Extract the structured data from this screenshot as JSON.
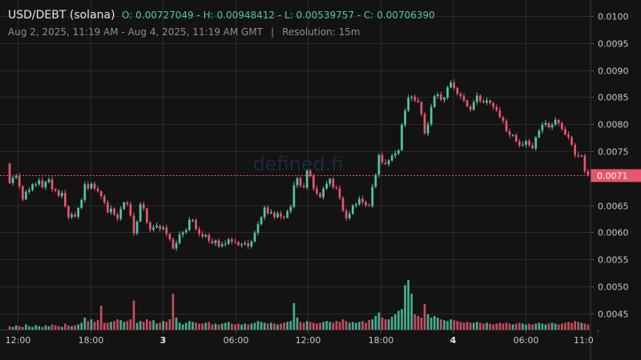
{
  "header": {
    "pair": "USD/DEBT (solana)",
    "ohlc": "O: 0.00727049 - H: 0.00948412 - L: 0.00539757 - C: 0.00706390",
    "range": "Aug 2, 2025, 11:19 AM - Aug 4, 2025, 11:19 AM GMT",
    "separator": "|",
    "resolution": "Resolution: 15m"
  },
  "watermark": "defined.fi",
  "colors": {
    "background": "#131313",
    "up": "#4fc8a4",
    "down": "#e7566a",
    "grid": "#2a2a2a",
    "text": "#c8c8c8",
    "price_line": "#e7566a"
  },
  "chart_data": {
    "type": "candlestick",
    "price_axis": {
      "ticks": [
        "0.0100",
        "0.0095",
        "0.0090",
        "0.0085",
        "0.0080",
        "0.0075",
        "0.0071",
        "0.0065",
        "0.0060",
        "0.0055",
        "0.0050",
        "0.0045"
      ],
      "ylim": [
        0.0042,
        0.01015
      ]
    },
    "time_axis": {
      "ticks": [
        {
          "label": "12:00",
          "bold": false
        },
        {
          "label": "18:00",
          "bold": false
        },
        {
          "label": "3",
          "bold": true
        },
        {
          "label": "06:00",
          "bold": false
        },
        {
          "label": "12:00",
          "bold": false
        },
        {
          "label": "18:00",
          "bold": false
        },
        {
          "label": "4",
          "bold": true
        },
        {
          "label": "06:00",
          "bold": false
        },
        {
          "label": "11:0",
          "bold": false
        }
      ]
    },
    "current_price": {
      "value": 0.00706,
      "label": "0.0071"
    },
    "grid": true,
    "series": {
      "close": [
        0.00691,
        0.00701,
        0.00704,
        0.00685,
        0.00661,
        0.00675,
        0.00678,
        0.00689,
        0.00689,
        0.00696,
        0.00683,
        0.00693,
        0.00698,
        0.0068,
        0.00677,
        0.00667,
        0.00673,
        0.00648,
        0.00628,
        0.00633,
        0.00629,
        0.00645,
        0.0066,
        0.00689,
        0.00681,
        0.0069,
        0.00681,
        0.00676,
        0.00667,
        0.00655,
        0.00637,
        0.00644,
        0.00633,
        0.00625,
        0.00643,
        0.00655,
        0.00652,
        0.00631,
        0.00598,
        0.0062,
        0.00652,
        0.00644,
        0.00618,
        0.00605,
        0.00609,
        0.00612,
        0.00606,
        0.00609,
        0.00597,
        0.00587,
        0.0057,
        0.0058,
        0.00596,
        0.006,
        0.00604,
        0.00623,
        0.00623,
        0.00606,
        0.00597,
        0.00592,
        0.00595,
        0.00584,
        0.0058,
        0.00585,
        0.00574,
        0.00578,
        0.00579,
        0.00587,
        0.00583,
        0.00582,
        0.00576,
        0.00578,
        0.0058,
        0.00574,
        0.00583,
        0.00599,
        0.00615,
        0.00628,
        0.00646,
        0.00635,
        0.00637,
        0.00628,
        0.00635,
        0.00629,
        0.00627,
        0.00639,
        0.00647,
        0.00687,
        0.007,
        0.00686,
        0.00683,
        0.00714,
        0.00704,
        0.00681,
        0.00672,
        0.00665,
        0.00681,
        0.0069,
        0.00699,
        0.00683,
        0.00681,
        0.00664,
        0.0064,
        0.00626,
        0.00634,
        0.0065,
        0.00652,
        0.00662,
        0.00656,
        0.0065,
        0.00649,
        0.00684,
        0.00707,
        0.00743,
        0.00729,
        0.00726,
        0.00733,
        0.00742,
        0.00746,
        0.00752,
        0.00799,
        0.00825,
        0.00849,
        0.00851,
        0.00844,
        0.00841,
        0.00819,
        0.00783,
        0.008,
        0.00832,
        0.00852,
        0.00855,
        0.00845,
        0.00849,
        0.00868,
        0.00877,
        0.00867,
        0.00856,
        0.00852,
        0.00844,
        0.00833,
        0.00827,
        0.00841,
        0.00853,
        0.00843,
        0.0084,
        0.00844,
        0.00839,
        0.00832,
        0.00826,
        0.00813,
        0.00806,
        0.00787,
        0.0078,
        0.0078,
        0.00768,
        0.00761,
        0.00762,
        0.00769,
        0.00761,
        0.00755,
        0.00776,
        0.00788,
        0.00799,
        0.00802,
        0.00794,
        0.00799,
        0.00808,
        0.00802,
        0.00791,
        0.00781,
        0.00776,
        0.00762,
        0.00743,
        0.00741,
        0.00742,
        0.00713,
        0.00706
      ],
      "volume": [
        4,
        3,
        5,
        4,
        3,
        6,
        4,
        3,
        5,
        4,
        3,
        5,
        4,
        6,
        5,
        4,
        3,
        7,
        5,
        4,
        5,
        6,
        8,
        14,
        10,
        12,
        9,
        11,
        28,
        8,
        8,
        9,
        10,
        12,
        11,
        9,
        10,
        12,
        34,
        8,
        10,
        9,
        12,
        10,
        11,
        7,
        8,
        10,
        9,
        12,
        42,
        14,
        8,
        6,
        8,
        10,
        9,
        8,
        7,
        7,
        8,
        9,
        6,
        7,
        6,
        7,
        8,
        9,
        7,
        6,
        7,
        6,
        7,
        6,
        7,
        8,
        10,
        9,
        8,
        7,
        8,
        7,
        6,
        7,
        8,
        9,
        10,
        31,
        14,
        9,
        8,
        10,
        9,
        8,
        7,
        8,
        9,
        10,
        9,
        8,
        10,
        9,
        12,
        10,
        8,
        9,
        8,
        9,
        10,
        8,
        11,
        12,
        16,
        20,
        14,
        12,
        12,
        15,
        18,
        22,
        24,
        52,
        58,
        42,
        18,
        16,
        14,
        30,
        18,
        14,
        16,
        14,
        12,
        11,
        10,
        12,
        11,
        10,
        9,
        8,
        9,
        8,
        8,
        9,
        8,
        7,
        8,
        7,
        6,
        7,
        8,
        7,
        8,
        7,
        6,
        7,
        8,
        7,
        6,
        7,
        6,
        7,
        8,
        7,
        6,
        7,
        8,
        7,
        6,
        7,
        8,
        9,
        8,
        10,
        9,
        8,
        7,
        6
      ]
    }
  }
}
